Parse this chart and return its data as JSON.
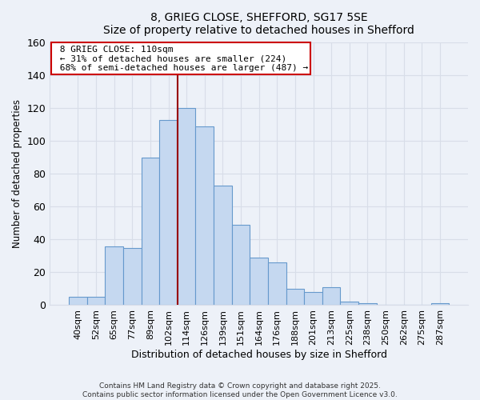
{
  "title1": "8, GRIEG CLOSE, SHEFFORD, SG17 5SE",
  "title2": "Size of property relative to detached houses in Shefford",
  "xlabel": "Distribution of detached houses by size in Shefford",
  "ylabel": "Number of detached properties",
  "bar_labels": [
    "40sqm",
    "52sqm",
    "65sqm",
    "77sqm",
    "89sqm",
    "102sqm",
    "114sqm",
    "126sqm",
    "139sqm",
    "151sqm",
    "164sqm",
    "176sqm",
    "188sqm",
    "201sqm",
    "213sqm",
    "225sqm",
    "238sqm",
    "250sqm",
    "262sqm",
    "275sqm",
    "287sqm"
  ],
  "bar_values": [
    5,
    5,
    36,
    35,
    90,
    113,
    120,
    109,
    73,
    49,
    29,
    26,
    10,
    8,
    11,
    2,
    1,
    0,
    0,
    0,
    1
  ],
  "bar_color": "#c5d8f0",
  "bar_edge_color": "#6699cc",
  "property_label": "8 GRIEG CLOSE: 110sqm",
  "annotation_line1": "← 31% of detached houses are smaller (224)",
  "annotation_line2": "68% of semi-detached houses are larger (487) →",
  "property_bar_index": 6,
  "highlight_line_color": "#990000",
  "annotation_box_edge_color": "#cc0000",
  "ylim": [
    0,
    160
  ],
  "yticks": [
    0,
    20,
    40,
    60,
    80,
    100,
    120,
    140,
    160
  ],
  "footer1": "Contains HM Land Registry data © Crown copyright and database right 2025.",
  "footer2": "Contains public sector information licensed under the Open Government Licence v3.0.",
  "bg_color": "#edf1f8",
  "grid_color": "#d8dde8",
  "title_fontsize": 10,
  "subtitle_fontsize": 9.5
}
